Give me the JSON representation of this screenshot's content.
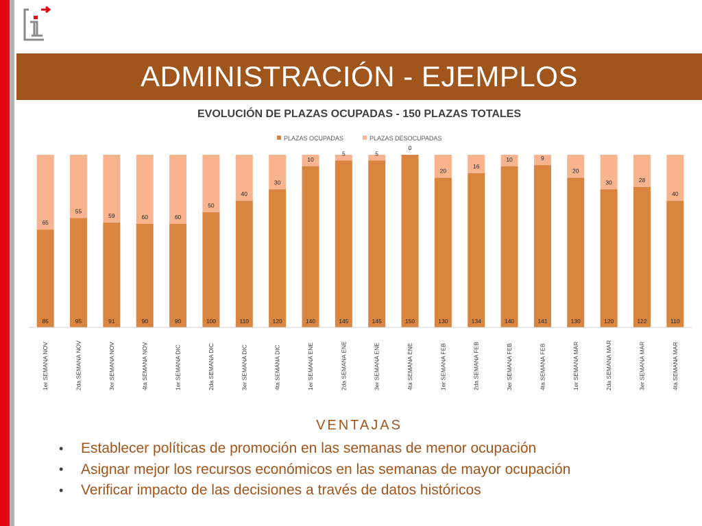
{
  "slide": {
    "title": "ADMINISTRACIÓN - EJEMPLOS",
    "advantages_heading": "VENTAJAS",
    "advantages": [
      "Establecer políticas de promoción en las semanas de menor ocupación",
      "Asignar mejor los recursos económicos en las semanas de mayor ocupación",
      "Verificar impacto de las decisiones a través de datos históricos"
    ],
    "logo_icon": "info-i-logo-icon",
    "colors": {
      "banner": "#a0551c",
      "accent_red": "#e30613",
      "occupied": "#d9843f",
      "unoccupied": "#f7b48f"
    }
  },
  "chart_data": {
    "type": "bar",
    "stacked": true,
    "title": "EVOLUCIÓN DE PLAZAS OCUPADAS - 150 PLAZAS TOTALES",
    "legend_position": "top",
    "ylim": [
      0,
      150
    ],
    "categories": [
      "1er SEMANA NOV",
      "2da SEMANA NOV",
      "3er SEMANA NOV",
      "4ta SEMANA NOV",
      "1er SEMANA DIC",
      "2da SEMANA DIC",
      "3er SEMANA DIC",
      "4ta SEMANA DIC",
      "1er SEMANA ENE",
      "2da SEMANA ENE",
      "3er SEMANA ENE",
      "4ta SEMANA ENE",
      "1er SEMANA FEB",
      "2da SEMANA FEB",
      "3er SEMANA FEB",
      "4ta SEMANA FEB",
      "1er SEMANA MAR",
      "2da SEMANA MAR",
      "3er SEMANA MAR",
      "4ta SEMANA MAR"
    ],
    "series": [
      {
        "name": "PLAZAS OCUPADAS",
        "color": "#d9843f",
        "values": [
          85,
          95,
          91,
          90,
          90,
          100,
          110,
          120,
          140,
          145,
          145,
          150,
          130,
          134,
          140,
          141,
          130,
          120,
          122,
          110
        ]
      },
      {
        "name": "PLAZAS DESOCUPADAS",
        "color": "#f7b48f",
        "values": [
          65,
          55,
          59,
          60,
          60,
          50,
          40,
          30,
          10,
          5,
          5,
          0,
          20,
          16,
          10,
          9,
          20,
          30,
          28,
          40
        ]
      }
    ]
  }
}
